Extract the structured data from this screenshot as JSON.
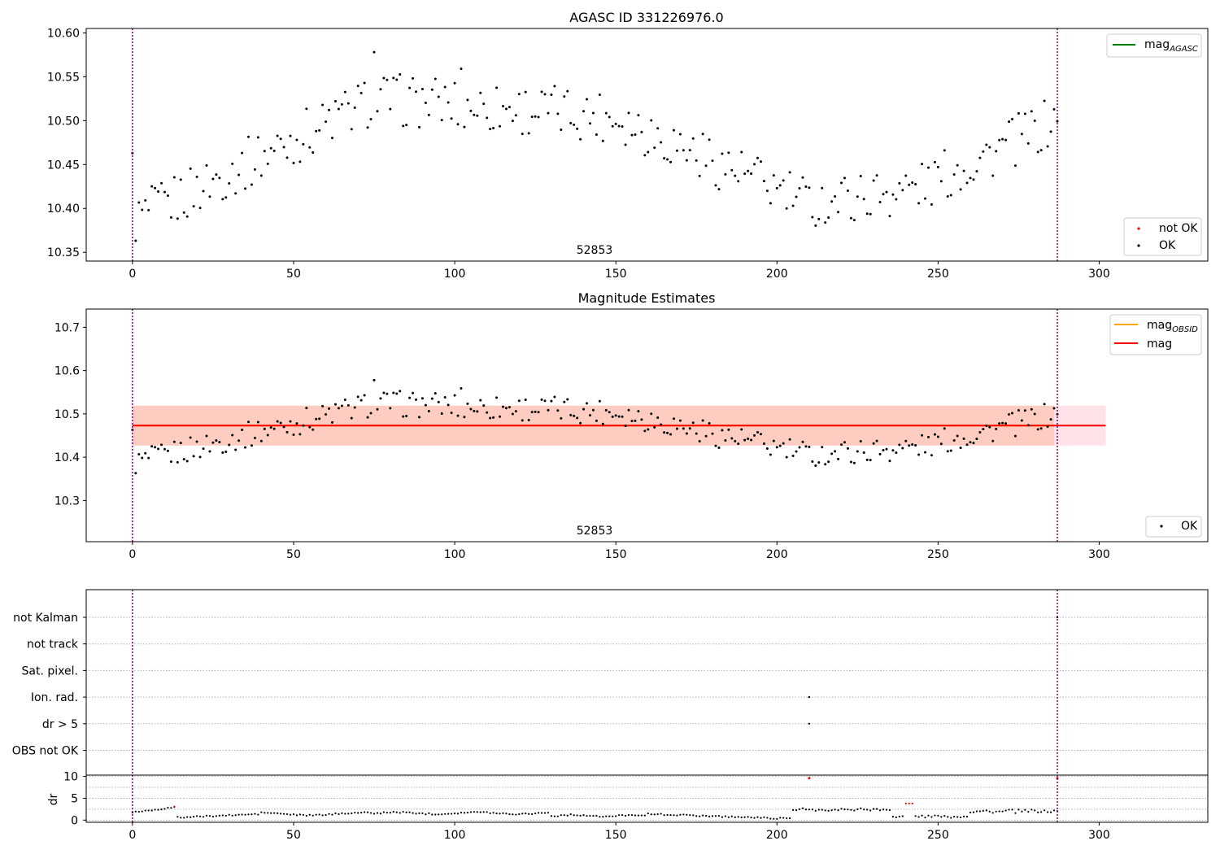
{
  "colors": {
    "ok": "#000000",
    "not_ok": "#ff0000",
    "mag_agasc": "#008000",
    "mag_obsid": "#ffa500",
    "mag": "#ff0000",
    "band_outer": "#ffc0cb",
    "band_inner": "#ffa07a",
    "vline": "#800080",
    "grid": "#b0b0b0"
  },
  "chart_data": [
    {
      "type": "scatter",
      "title": "AGASC ID 331226976.0",
      "annotation": "52853",
      "xlim": [
        -14.35,
        333.7
      ],
      "ylim": [
        10.34,
        10.605
      ],
      "xticks": [
        0,
        50,
        100,
        150,
        200,
        250,
        300
      ],
      "yticks": [
        10.35,
        10.4,
        10.45,
        10.5,
        10.55,
        10.6
      ],
      "ytick_labels": [
        "10.35",
        "10.40",
        "10.45",
        "10.50",
        "10.55",
        "10.60"
      ],
      "vlines": [
        0,
        287
      ],
      "legend_lines": [
        {
          "main": "mag",
          "sub": "AGASC",
          "color_key": "mag_agasc"
        }
      ],
      "legend_points": [
        {
          "label": "not OK",
          "color_key": "not_ok"
        },
        {
          "label": "OK",
          "color_key": "ok"
        }
      ]
    },
    {
      "type": "scatter",
      "title": "Magnitude Estimates",
      "annotation": "52853",
      "xlim": [
        -14.35,
        333.7
      ],
      "ylim": [
        10.205,
        10.742
      ],
      "xticks": [
        0,
        50,
        100,
        150,
        200,
        250,
        300
      ],
      "yticks": [
        10.3,
        10.4,
        10.5,
        10.6,
        10.7
      ],
      "ytick_labels": [
        "10.3",
        "10.4",
        "10.5",
        "10.6",
        "10.7"
      ],
      "vlines": [
        0,
        287
      ],
      "mag": 10.473,
      "mag_obsid": 10.473,
      "band_outer": [
        10.427,
        10.519
      ],
      "band_inner": [
        10.427,
        10.519
      ],
      "band_x": [
        0,
        302
      ],
      "legend_lines": [
        {
          "main": "mag",
          "sub": "OBSID",
          "color_key": "mag_obsid"
        },
        {
          "main": "mag",
          "sub": "",
          "color_key": "mag"
        }
      ],
      "legend_points": [
        {
          "label": "OK",
          "color_key": "ok"
        }
      ]
    },
    {
      "type": "scatter",
      "xlim": [
        -14.35,
        333.7
      ],
      "xticks": [
        0,
        50,
        100,
        150,
        200,
        250,
        300
      ],
      "vlines": [
        0,
        287
      ],
      "flag_labels": [
        "not Kalman",
        "not track",
        "Sat. pixel.",
        "Ion. rad.",
        "dr > 5",
        "OBS not OK"
      ],
      "flag_points": [
        {
          "flag": "not Kalman",
          "x": 287
        },
        {
          "flag": "Ion. rad.",
          "x": 210
        },
        {
          "flag": "dr > 5",
          "x": 210
        }
      ],
      "dr_ylabel": "dr",
      "dr_ylim": [
        -0.5,
        10.3
      ],
      "dr_yticks": [
        0,
        5,
        10
      ],
      "dr_grid": [
        0,
        2.5,
        5,
        7.5,
        10
      ]
    }
  ]
}
